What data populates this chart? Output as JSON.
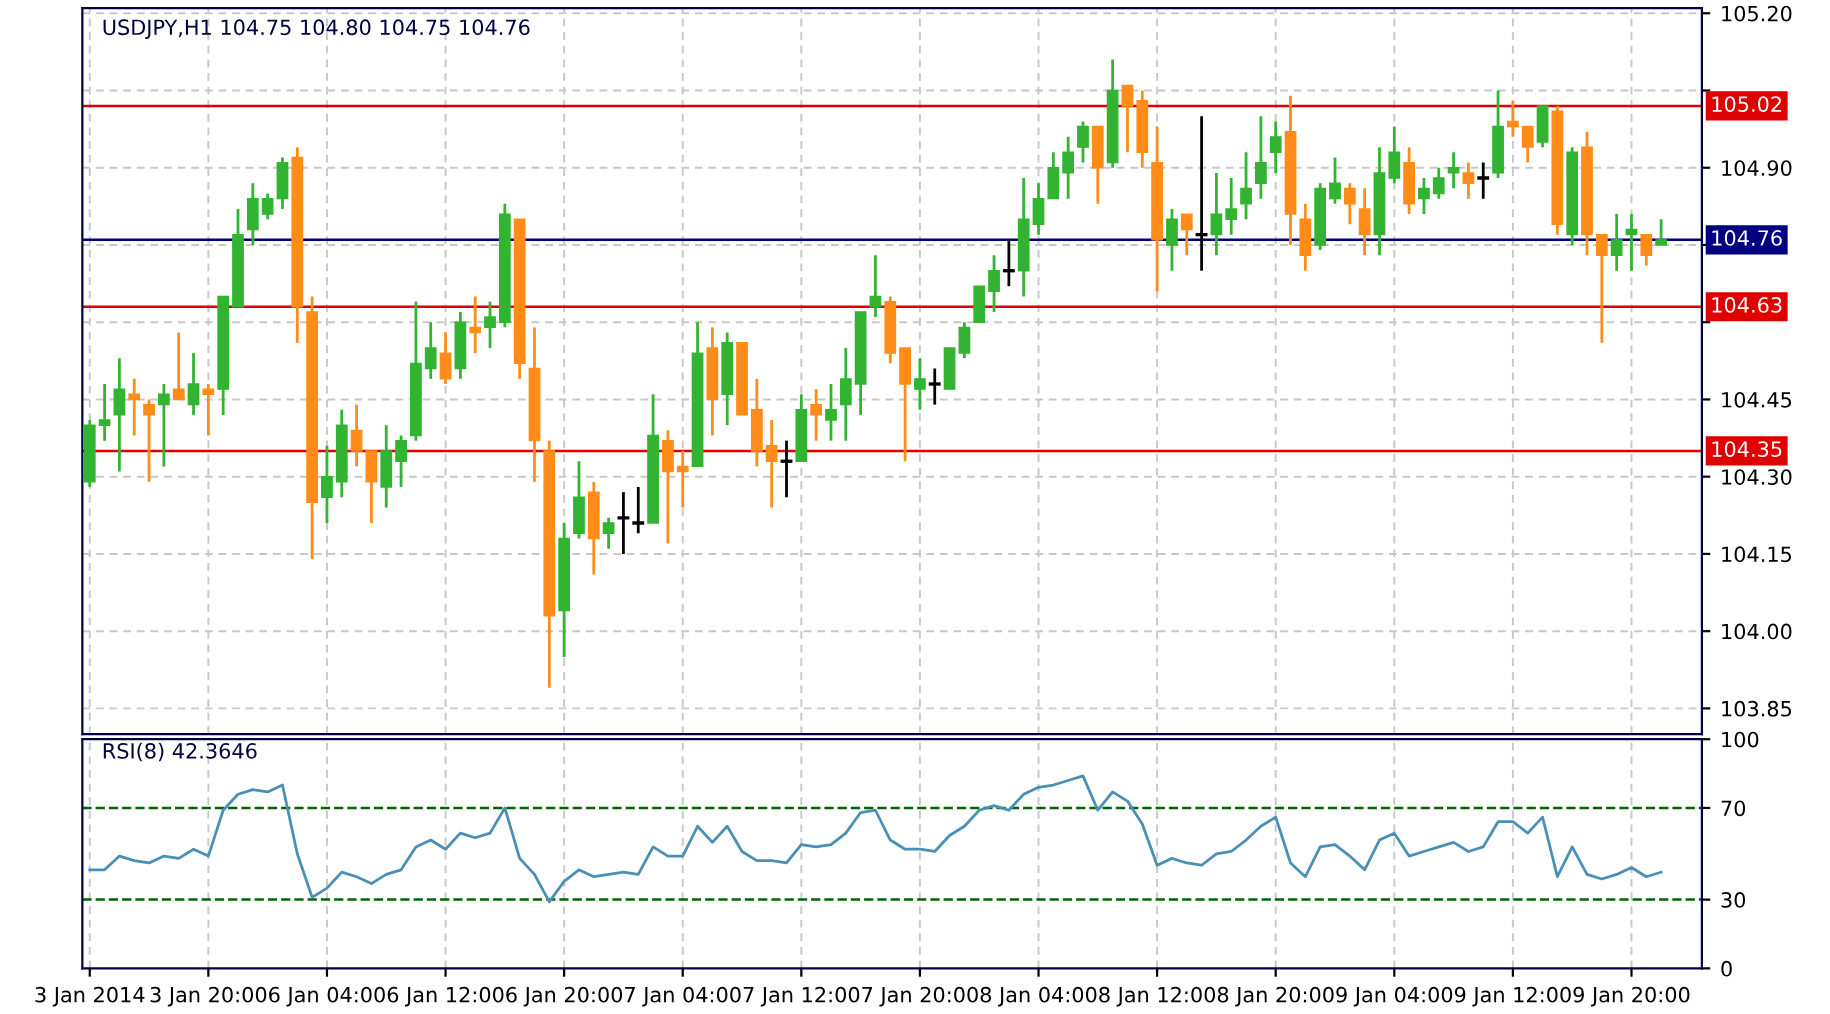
{
  "chart_data": [
    {
      "type": "candlestick",
      "title": "USDJPY,H1 104.75 104.80 104.75 104.76",
      "categories": [
        null,
        null,
        null,
        null,
        null,
        null,
        null,
        null,
        null,
        null,
        null,
        null,
        null,
        null,
        null,
        null,
        null,
        null,
        null,
        null,
        null,
        null,
        null,
        null,
        null,
        null,
        null,
        null,
        null,
        null,
        null,
        null,
        null,
        null,
        null,
        null,
        null,
        null,
        null,
        null,
        null,
        null,
        null,
        null,
        null,
        null,
        null,
        null,
        null,
        null,
        null,
        null,
        null,
        null,
        null,
        null,
        null,
        null,
        null,
        null,
        null,
        null,
        null,
        null,
        null,
        null,
        null,
        null,
        null,
        null,
        null,
        null,
        null,
        null,
        null,
        null,
        null,
        null,
        null,
        null,
        null,
        null,
        null,
        null,
        null,
        null,
        null,
        null,
        null,
        null,
        null,
        null,
        null,
        null,
        null,
        null,
        null,
        null,
        null,
        null,
        null,
        null,
        null,
        null,
        null,
        null,
        null
      ],
      "ohlc": [
        [
          104.29,
          104.41,
          104.28,
          104.4
        ],
        [
          104.4,
          104.48,
          104.37,
          104.41
        ],
        [
          104.42,
          104.53,
          104.31,
          104.47
        ],
        [
          104.46,
          104.49,
          104.38,
          104.45
        ],
        [
          104.44,
          104.45,
          104.29,
          104.42
        ],
        [
          104.44,
          104.48,
          104.32,
          104.46
        ],
        [
          104.47,
          104.58,
          104.45,
          104.45
        ],
        [
          104.44,
          104.54,
          104.42,
          104.48
        ],
        [
          104.47,
          104.48,
          104.38,
          104.46
        ],
        [
          104.47,
          104.65,
          104.42,
          104.65
        ],
        [
          104.63,
          104.82,
          104.63,
          104.77
        ],
        [
          104.78,
          104.87,
          104.75,
          104.84
        ],
        [
          104.81,
          104.85,
          104.8,
          104.84
        ],
        [
          104.84,
          104.92,
          104.82,
          104.91
        ],
        [
          104.92,
          104.94,
          104.56,
          104.63
        ],
        [
          104.62,
          104.65,
          104.14,
          104.25
        ],
        [
          104.26,
          104.36,
          104.21,
          104.3
        ],
        [
          104.29,
          104.43,
          104.26,
          104.4
        ],
        [
          104.39,
          104.44,
          104.32,
          104.35
        ],
        [
          104.35,
          104.35,
          104.21,
          104.29
        ],
        [
          104.28,
          104.4,
          104.24,
          104.35
        ],
        [
          104.33,
          104.38,
          104.28,
          104.37
        ],
        [
          104.38,
          104.64,
          104.37,
          104.52
        ],
        [
          104.51,
          104.6,
          104.49,
          104.55
        ],
        [
          104.54,
          104.58,
          104.48,
          104.49
        ],
        [
          104.51,
          104.62,
          104.49,
          104.6
        ],
        [
          104.59,
          104.65,
          104.54,
          104.58
        ],
        [
          104.59,
          104.64,
          104.55,
          104.61
        ],
        [
          104.6,
          104.83,
          104.59,
          104.81
        ],
        [
          104.8,
          104.8,
          104.49,
          104.52
        ],
        [
          104.51,
          104.59,
          104.29,
          104.37
        ],
        [
          104.35,
          104.37,
          103.89,
          104.03
        ],
        [
          104.04,
          104.21,
          103.95,
          104.18
        ],
        [
          104.19,
          104.33,
          104.18,
          104.26
        ],
        [
          104.27,
          104.29,
          104.11,
          104.18
        ],
        [
          104.19,
          104.22,
          104.16,
          104.21
        ],
        [
          104.22,
          104.27,
          104.15,
          104.22
        ],
        [
          104.21,
          104.28,
          104.19,
          104.21
        ],
        [
          104.21,
          104.46,
          104.21,
          104.38
        ],
        [
          104.37,
          104.39,
          104.17,
          104.31
        ],
        [
          104.32,
          104.35,
          104.24,
          104.31
        ],
        [
          104.32,
          104.6,
          104.32,
          104.54
        ],
        [
          104.55,
          104.59,
          104.38,
          104.45
        ],
        [
          104.46,
          104.58,
          104.4,
          104.56
        ],
        [
          104.56,
          104.56,
          104.42,
          104.42
        ],
        [
          104.43,
          104.49,
          104.32,
          104.35
        ],
        [
          104.36,
          104.41,
          104.24,
          104.33
        ],
        [
          104.33,
          104.37,
          104.26,
          104.33
        ],
        [
          104.33,
          104.46,
          104.33,
          104.43
        ],
        [
          104.44,
          104.47,
          104.37,
          104.42
        ],
        [
          104.41,
          104.48,
          104.37,
          104.43
        ],
        [
          104.44,
          104.55,
          104.37,
          104.49
        ],
        [
          104.48,
          104.62,
          104.42,
          104.62
        ],
        [
          104.63,
          104.73,
          104.61,
          104.65
        ],
        [
          104.64,
          104.65,
          104.52,
          104.54
        ],
        [
          104.55,
          104.55,
          104.33,
          104.48
        ],
        [
          104.47,
          104.53,
          104.43,
          104.49
        ],
        [
          104.48,
          104.51,
          104.44,
          104.48
        ],
        [
          104.47,
          104.55,
          104.47,
          104.55
        ],
        [
          104.54,
          104.6,
          104.53,
          104.59
        ],
        [
          104.6,
          104.67,
          104.6,
          104.67
        ],
        [
          104.66,
          104.73,
          104.62,
          104.7
        ],
        [
          104.7,
          104.76,
          104.67,
          104.7
        ],
        [
          104.7,
          104.88,
          104.65,
          104.8
        ],
        [
          104.79,
          104.87,
          104.77,
          104.84
        ],
        [
          104.84,
          104.93,
          104.84,
          104.9
        ],
        [
          104.89,
          104.96,
          104.84,
          104.93
        ],
        [
          104.94,
          104.99,
          104.91,
          104.98
        ],
        [
          104.98,
          104.98,
          104.83,
          104.9
        ],
        [
          104.91,
          105.11,
          104.9,
          105.05
        ],
        [
          105.06,
          105.06,
          104.93,
          105.02
        ],
        [
          105.03,
          105.05,
          104.9,
          104.93
        ],
        [
          104.91,
          104.98,
          104.66,
          104.76
        ],
        [
          104.75,
          104.82,
          104.7,
          104.8
        ],
        [
          104.81,
          104.81,
          104.73,
          104.78
        ],
        [
          104.77,
          105.0,
          104.7,
          104.77
        ],
        [
          104.77,
          104.89,
          104.73,
          104.81
        ],
        [
          104.8,
          104.88,
          104.77,
          104.82
        ],
        [
          104.83,
          104.93,
          104.8,
          104.86
        ],
        [
          104.87,
          105.0,
          104.84,
          104.91
        ],
        [
          104.93,
          104.99,
          104.89,
          104.96
        ],
        [
          104.97,
          105.04,
          104.75,
          104.81
        ],
        [
          104.8,
          104.83,
          104.7,
          104.73
        ],
        [
          104.75,
          104.87,
          104.74,
          104.86
        ],
        [
          104.84,
          104.92,
          104.83,
          104.87
        ],
        [
          104.86,
          104.87,
          104.79,
          104.83
        ],
        [
          104.82,
          104.86,
          104.73,
          104.77
        ],
        [
          104.77,
          104.94,
          104.73,
          104.89
        ],
        [
          104.88,
          104.98,
          104.87,
          104.93
        ],
        [
          104.91,
          104.94,
          104.81,
          104.83
        ],
        [
          104.84,
          104.88,
          104.81,
          104.86
        ],
        [
          104.85,
          104.9,
          104.84,
          104.88
        ],
        [
          104.89,
          104.93,
          104.86,
          104.9
        ],
        [
          104.89,
          104.91,
          104.84,
          104.87
        ],
        [
          104.88,
          104.91,
          104.84,
          104.88
        ],
        [
          104.89,
          105.05,
          104.88,
          104.98
        ],
        [
          104.99,
          105.03,
          104.96,
          104.98
        ],
        [
          104.98,
          104.98,
          104.91,
          104.94
        ],
        [
          104.95,
          105.02,
          104.94,
          105.02
        ],
        [
          105.01,
          105.02,
          104.77,
          104.79
        ],
        [
          104.77,
          104.94,
          104.75,
          104.93
        ],
        [
          104.94,
          104.97,
          104.73,
          104.77
        ],
        [
          104.77,
          104.77,
          104.56,
          104.73
        ],
        [
          104.73,
          104.81,
          104.7,
          104.76
        ],
        [
          104.77,
          104.81,
          104.7,
          104.78
        ],
        [
          104.77,
          104.77,
          104.71,
          104.73
        ],
        [
          104.75,
          104.8,
          104.75,
          104.76
        ]
      ],
      "colors": [
        "#32b432",
        "#32b432",
        "#32b432",
        "#ff8c19",
        "#ff8c19",
        "#32b432",
        "#ff8c19",
        "#32b432",
        "#ff8c19",
        "#32b432",
        "#32b432",
        "#32b432",
        "#32b432",
        "#32b432",
        "#ff8c19",
        "#ff8c19",
        "#32b432",
        "#32b432",
        "#ff8c19",
        "#ff8c19",
        "#32b432",
        "#32b432",
        "#32b432",
        "#32b432",
        "#ff8c19",
        "#32b432",
        "#ff8c19",
        "#32b432",
        "#32b432",
        "#ff8c19",
        "#ff8c19",
        "#ff8c19",
        "#32b432",
        "#32b432",
        "#ff8c19",
        "#32b432",
        "#000000",
        "#000000",
        "#32b432",
        "#ff8c19",
        "#ff8c19",
        "#32b432",
        "#ff8c19",
        "#32b432",
        "#ff8c19",
        "#ff8c19",
        "#ff8c19",
        "#000000",
        "#32b432",
        "#ff8c19",
        "#32b432",
        "#32b432",
        "#32b432",
        "#32b432",
        "#ff8c19",
        "#ff8c19",
        "#32b432",
        "#000000",
        "#32b432",
        "#32b432",
        "#32b432",
        "#32b432",
        "#000000",
        "#32b432",
        "#32b432",
        "#32b432",
        "#32b432",
        "#32b432",
        "#ff8c19",
        "#32b432",
        "#ff8c19",
        "#ff8c19",
        "#ff8c19",
        "#32b432",
        "#ff8c19",
        "#000000",
        "#32b432",
        "#32b432",
        "#32b432",
        "#32b432",
        "#32b432",
        "#ff8c19",
        "#ff8c19",
        "#32b432",
        "#32b432",
        "#ff8c19",
        "#ff8c19",
        "#32b432",
        "#32b432",
        "#ff8c19",
        "#32b432",
        "#32b432",
        "#32b432",
        "#ff8c19",
        "#000000",
        "#32b432",
        "#ff8c19",
        "#ff8c19",
        "#32b432",
        "#ff8c19",
        "#32b432",
        "#ff8c19",
        "#ff8c19",
        "#32b432",
        "#32b432",
        "#ff8c19",
        "#32b432"
      ],
      "ylim": [
        103.8,
        105.21
      ],
      "yticks": [
        {
          "value": 103.85,
          "label": "103.85"
        },
        {
          "value": 104.0,
          "label": "104.00"
        },
        {
          "value": 104.15,
          "label": "104.15"
        },
        {
          "value": 104.3,
          "label": "104.30"
        },
        {
          "value": 104.45,
          "label": "104.45"
        },
        {
          "value": 104.6,
          "label": null
        },
        {
          "value": 104.75,
          "label": null
        },
        {
          "value": 104.9,
          "label": "104.90"
        },
        {
          "value": 105.05,
          "label": null
        },
        {
          "value": 105.2,
          "label": "105.20"
        }
      ],
      "ref_lines": [
        {
          "axis": "y",
          "value": 105.02,
          "label": "105.02",
          "color": "#e00000"
        },
        {
          "axis": "y",
          "value": 104.63,
          "label": "104.63",
          "color": "#e00000"
        },
        {
          "axis": "y",
          "value": 104.35,
          "label": "104.35",
          "color": "#e00000"
        },
        {
          "axis": "y",
          "value": 104.76,
          "label": "104.76",
          "color": "#000080"
        }
      ],
      "grid": true,
      "tick_labels": "y"
    },
    {
      "type": "line",
      "title": "RSI(8) 42.3646",
      "categories": [
        "3 Jan 2014",
        null,
        null,
        null,
        null,
        null,
        null,
        null,
        "3 Jan 20:00",
        null,
        null,
        null,
        null,
        null,
        null,
        null,
        "6 Jan 04:00",
        null,
        null,
        null,
        null,
        null,
        null,
        null,
        "6 Jan 12:00",
        null,
        null,
        null,
        null,
        null,
        null,
        null,
        "6 Jan 20:00",
        null,
        null,
        null,
        null,
        null,
        null,
        null,
        "7 Jan 04:00",
        null,
        null,
        null,
        null,
        null,
        null,
        null,
        "7 Jan 12:00",
        null,
        null,
        null,
        null,
        null,
        null,
        null,
        "7 Jan 20:00",
        null,
        null,
        null,
        null,
        null,
        null,
        null,
        "8 Jan 04:00",
        null,
        null,
        null,
        null,
        null,
        null,
        null,
        "8 Jan 12:00",
        null,
        null,
        null,
        null,
        null,
        null,
        null,
        "8 Jan 20:00",
        null,
        null,
        null,
        null,
        null,
        null,
        null,
        "9 Jan 04:00",
        null,
        null,
        null,
        null,
        null,
        null,
        null,
        "9 Jan 12:00",
        null,
        null,
        null,
        null,
        null,
        null,
        null,
        "9 Jan 20:00",
        null,
        null
      ],
      "series": [
        {
          "color": "#4a8fb5",
          "values": [
            43,
            43,
            49,
            47,
            46,
            49,
            48,
            52,
            49,
            69,
            76,
            78,
            77,
            80,
            50,
            31,
            35,
            42,
            40,
            37,
            41,
            43,
            53,
            56,
            52,
            59,
            57,
            59,
            70,
            48,
            41,
            29,
            38,
            43,
            40,
            41,
            42,
            41,
            53,
            49,
            49,
            62,
            55,
            62,
            51,
            47,
            47,
            46,
            54,
            53,
            54,
            59,
            68,
            69,
            56,
            52,
            52,
            51,
            58,
            62,
            69,
            71,
            69,
            76,
            79,
            80,
            82,
            84,
            69,
            77,
            73,
            63,
            45,
            48,
            46,
            45,
            50,
            51,
            56,
            62,
            66,
            46,
            40,
            53,
            54,
            49,
            43,
            56,
            59,
            49,
            51,
            53,
            55,
            51,
            53,
            64,
            64,
            59,
            66,
            40,
            53,
            41,
            39,
            41,
            44,
            40,
            42
          ]
        }
      ],
      "ylim": [
        0,
        100
      ],
      "yticks": [
        0,
        30,
        70,
        100
      ],
      "ref_lines": [
        {
          "axis": "y",
          "value": 70,
          "color": "#006400",
          "line_style": "dashed"
        },
        {
          "axis": "y",
          "value": 30,
          "color": "#006400",
          "line_style": "dashed"
        }
      ],
      "grid": "x"
    }
  ]
}
